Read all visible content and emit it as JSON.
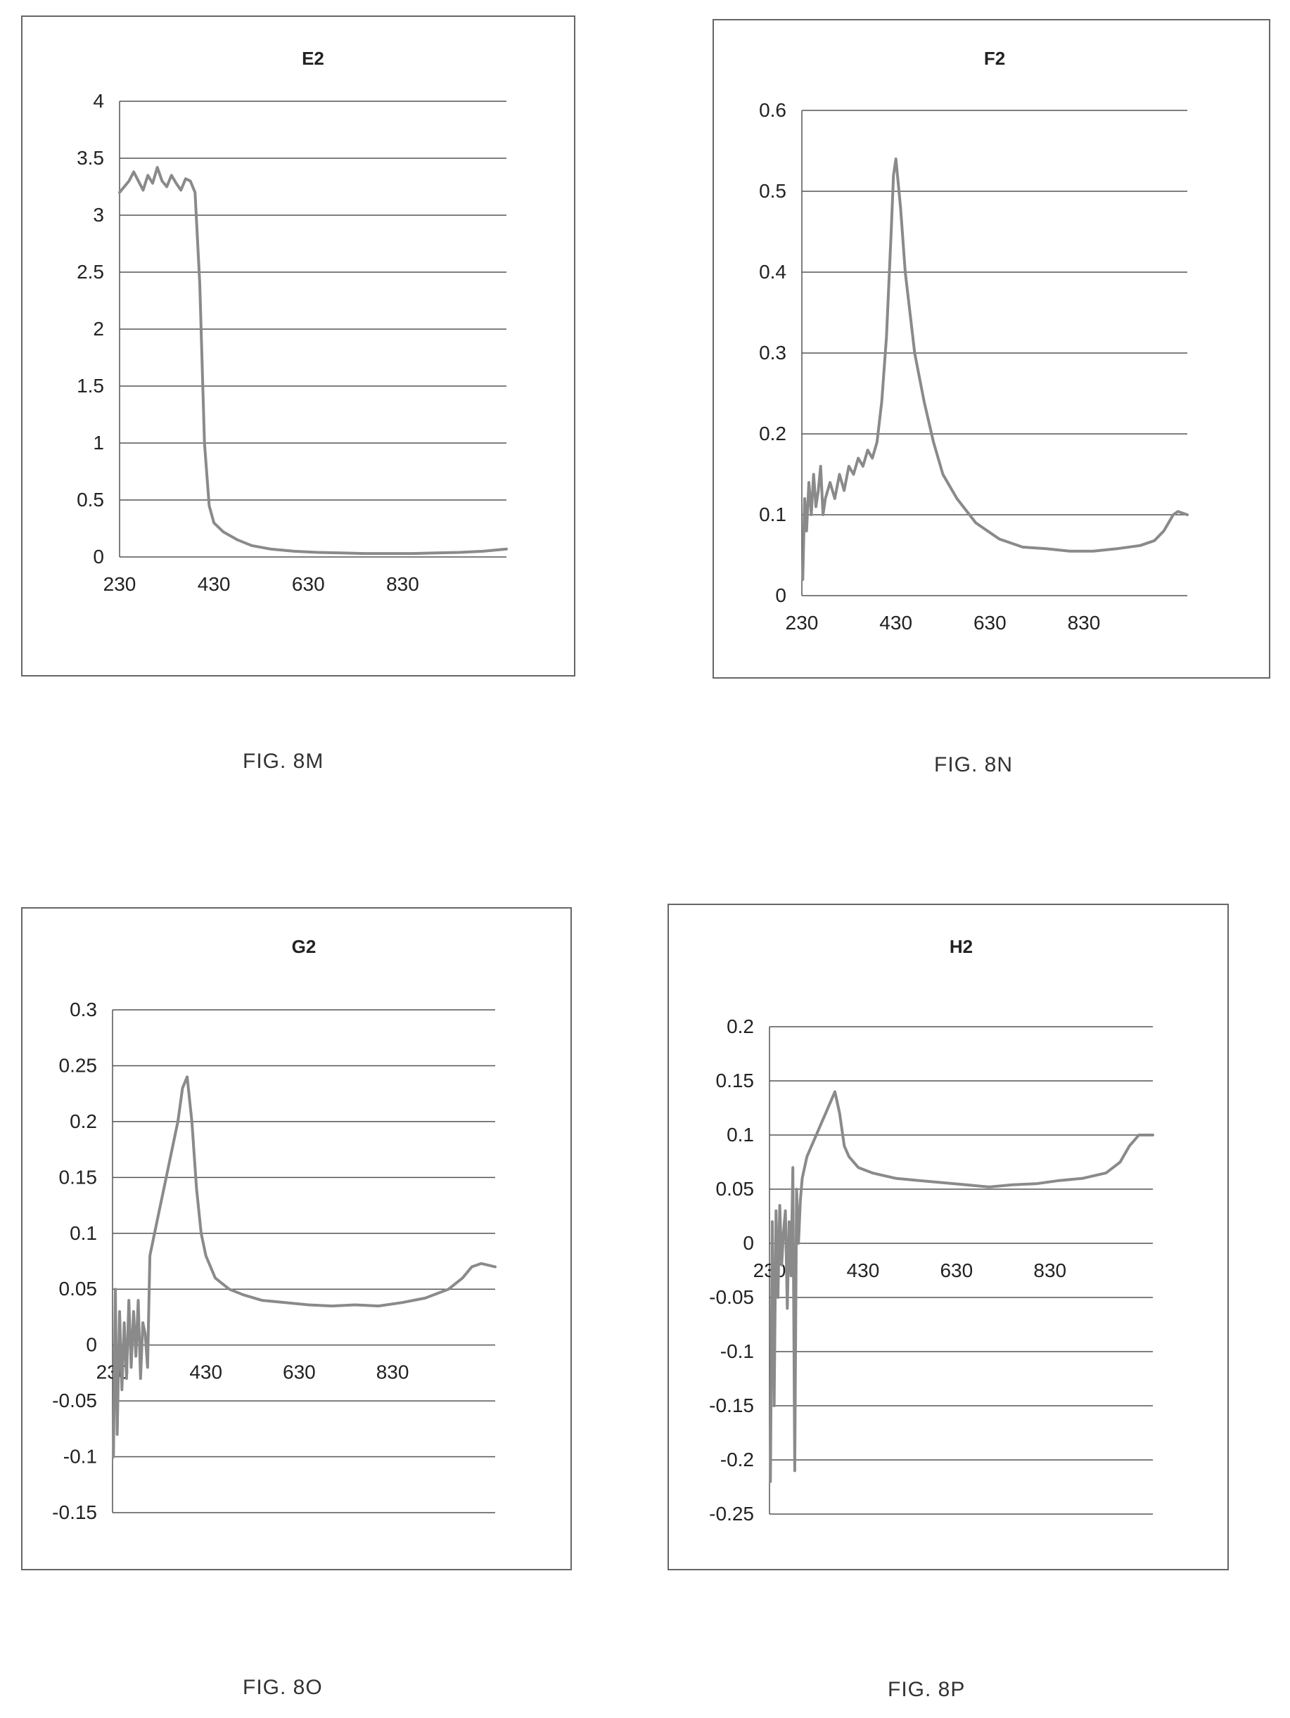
{
  "figures": [
    {
      "label": "FIG. 8M"
    },
    {
      "label": "FIG. 8N"
    },
    {
      "label": "FIG. 8O"
    },
    {
      "label": "FIG. 8P"
    }
  ],
  "colors": {
    "series": "#8a8a8a",
    "grid": "#555555",
    "frame": "#666666",
    "text": "#222222"
  },
  "chart_data": [
    {
      "type": "line",
      "title": "E2",
      "xlabel": "",
      "ylabel": "",
      "xlim": [
        230,
        1050
      ],
      "ylim": [
        0,
        4
      ],
      "x_ticks": [
        "230",
        "430",
        "630",
        "830"
      ],
      "y_ticks": [
        "0",
        "0.5",
        "1",
        "1.5",
        "2",
        "2.5",
        "3",
        "3.5",
        "4"
      ],
      "grid": "horizontal",
      "legend": "none",
      "series": [
        {
          "x": [
            230,
            240,
            250,
            260,
            270,
            280,
            290,
            300,
            310,
            320,
            330,
            340,
            350,
            360,
            370,
            380,
            390,
            400,
            410,
            420,
            430,
            450,
            480,
            510,
            550,
            600,
            650,
            700,
            750,
            800,
            850,
            900,
            950,
            1000,
            1050
          ],
          "y": [
            3.2,
            3.25,
            3.3,
            3.38,
            3.3,
            3.22,
            3.35,
            3.28,
            3.42,
            3.3,
            3.25,
            3.35,
            3.28,
            3.22,
            3.32,
            3.3,
            3.2,
            2.4,
            1.0,
            0.45,
            0.3,
            0.22,
            0.15,
            0.1,
            0.07,
            0.05,
            0.04,
            0.035,
            0.03,
            0.03,
            0.03,
            0.035,
            0.04,
            0.05,
            0.07
          ]
        }
      ]
    },
    {
      "type": "line",
      "title": "F2",
      "xlabel": "",
      "ylabel": "",
      "xlim": [
        230,
        1050
      ],
      "ylim": [
        0,
        0.6
      ],
      "x_ticks": [
        "230",
        "430",
        "630",
        "830"
      ],
      "y_ticks": [
        "0",
        "0.1",
        "0.2",
        "0.3",
        "0.4",
        "0.5",
        "0.6"
      ],
      "grid": "horizontal",
      "legend": "none",
      "series": [
        {
          "x": [
            232,
            236,
            240,
            245,
            250,
            255,
            260,
            265,
            270,
            275,
            280,
            290,
            300,
            310,
            320,
            330,
            340,
            350,
            360,
            370,
            380,
            390,
            400,
            410,
            420,
            425,
            430,
            440,
            450,
            470,
            490,
            510,
            530,
            560,
            600,
            650,
            700,
            750,
            800,
            850,
            900,
            950,
            980,
            1000,
            1020,
            1030,
            1050
          ],
          "y": [
            0.02,
            0.12,
            0.08,
            0.14,
            0.1,
            0.15,
            0.11,
            0.13,
            0.16,
            0.1,
            0.12,
            0.14,
            0.12,
            0.15,
            0.13,
            0.16,
            0.15,
            0.17,
            0.16,
            0.18,
            0.17,
            0.19,
            0.24,
            0.32,
            0.45,
            0.52,
            0.54,
            0.48,
            0.4,
            0.3,
            0.24,
            0.19,
            0.15,
            0.12,
            0.09,
            0.07,
            0.06,
            0.058,
            0.055,
            0.055,
            0.058,
            0.062,
            0.068,
            0.08,
            0.1,
            0.104,
            0.1
          ]
        }
      ]
    },
    {
      "type": "line",
      "title": "G2",
      "xlabel": "",
      "ylabel": "",
      "xlim": [
        230,
        1050
      ],
      "ylim": [
        -0.15,
        0.3
      ],
      "x_ticks": [
        "230",
        "430",
        "630",
        "830"
      ],
      "y_ticks": [
        "-0.15",
        "-0.1",
        "-0.05",
        "0",
        "0.05",
        "0.1",
        "0.15",
        "0.2",
        "0.25",
        "0.3"
      ],
      "grid": "horizontal",
      "legend": "none",
      "series": [
        {
          "x": [
            232,
            236,
            240,
            245,
            250,
            255,
            260,
            265,
            270,
            275,
            280,
            285,
            290,
            295,
            300,
            305,
            310,
            320,
            330,
            340,
            350,
            360,
            370,
            380,
            390,
            400,
            410,
            420,
            430,
            450,
            480,
            510,
            550,
            600,
            650,
            700,
            750,
            800,
            850,
            900,
            950,
            980,
            1000,
            1020,
            1050
          ],
          "y": [
            -0.1,
            0.05,
            -0.08,
            0.03,
            -0.04,
            0.02,
            -0.03,
            0.04,
            -0.02,
            0.03,
            -0.01,
            0.04,
            -0.03,
            0.02,
            0.01,
            -0.02,
            0.08,
            0.1,
            0.12,
            0.14,
            0.16,
            0.18,
            0.2,
            0.23,
            0.24,
            0.2,
            0.14,
            0.1,
            0.08,
            0.06,
            0.05,
            0.045,
            0.04,
            0.038,
            0.036,
            0.035,
            0.036,
            0.035,
            0.038,
            0.042,
            0.05,
            0.06,
            0.07,
            0.073,
            0.07
          ]
        }
      ]
    },
    {
      "type": "line",
      "title": "H2",
      "xlabel": "",
      "ylabel": "",
      "xlim": [
        230,
        1050
      ],
      "ylim": [
        -0.25,
        0.2
      ],
      "x_ticks": [
        "230",
        "430",
        "630",
        "830"
      ],
      "y_ticks": [
        "-0.25",
        "-0.2",
        "-0.15",
        "-0.1",
        "-0.05",
        "0",
        "0.05",
        "0.1",
        "0.15",
        "0.2"
      ],
      "grid": "horizontal",
      "legend": "none",
      "series": [
        {
          "x": [
            232,
            236,
            240,
            244,
            248,
            252,
            256,
            260,
            264,
            268,
            272,
            276,
            280,
            284,
            288,
            292,
            296,
            300,
            310,
            320,
            330,
            340,
            350,
            360,
            370,
            380,
            390,
            400,
            420,
            450,
            500,
            550,
            600,
            650,
            700,
            750,
            800,
            850,
            900,
            950,
            980,
            1000,
            1020,
            1050
          ],
          "y": [
            -0.22,
            0.02,
            -0.15,
            0.03,
            -0.05,
            0.035,
            -0.02,
            0.01,
            0.03,
            -0.06,
            0.02,
            -0.03,
            0.07,
            -0.21,
            0.05,
            0.0,
            0.04,
            0.06,
            0.08,
            0.09,
            0.1,
            0.11,
            0.12,
            0.13,
            0.14,
            0.12,
            0.09,
            0.08,
            0.07,
            0.065,
            0.06,
            0.058,
            0.056,
            0.054,
            0.052,
            0.054,
            0.055,
            0.058,
            0.06,
            0.065,
            0.075,
            0.09,
            0.1,
            0.1
          ]
        }
      ]
    }
  ]
}
